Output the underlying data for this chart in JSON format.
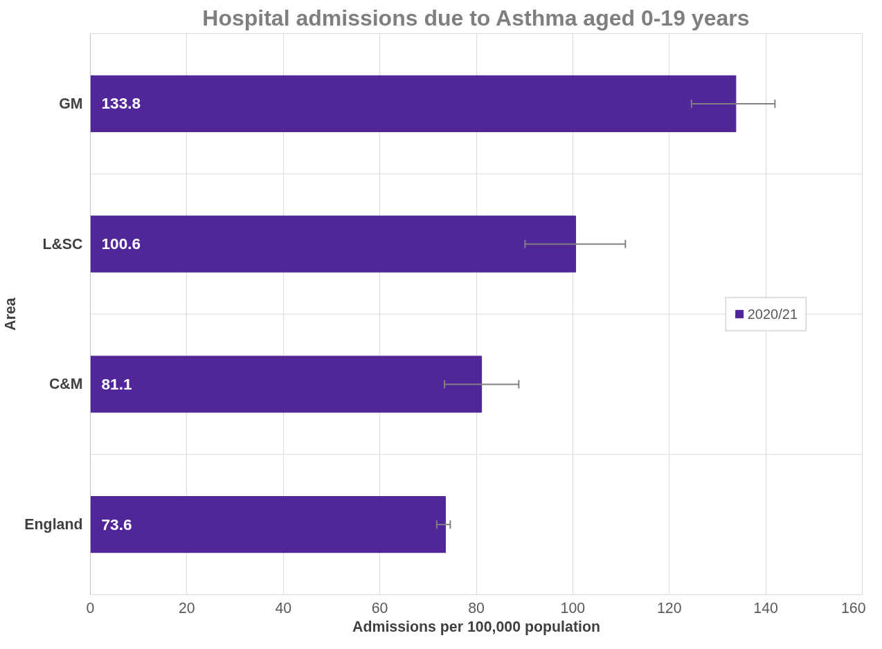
{
  "chart_data": {
    "type": "bar",
    "orientation": "horizontal",
    "title": "Hospital admissions due to Asthma aged 0-19 years",
    "xlabel": "Admissions per 100,000 population",
    "ylabel": "Area",
    "categories": [
      "GM",
      "L&SC",
      "C&M",
      "England"
    ],
    "series": [
      {
        "name": "2020/21",
        "color": "#512698",
        "values": [
          133.8,
          100.6,
          81.1,
          73.6
        ],
        "errors": [
          [
            124.6,
            141.9
          ],
          [
            90.1,
            110.9
          ],
          [
            73.4,
            88.8
          ],
          [
            71.8,
            74.6
          ]
        ]
      }
    ],
    "data_labels": true,
    "xlim": [
      0,
      160
    ],
    "xticks": [
      0,
      20,
      40,
      60,
      80,
      100,
      120,
      140,
      160
    ],
    "grid": true,
    "legend": "right"
  }
}
